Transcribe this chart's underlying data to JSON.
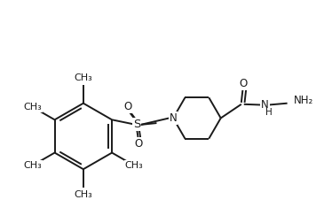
{
  "background_color": "#ffffff",
  "line_color": "#1a1a1a",
  "line_width": 1.4,
  "font_size": 8.5,
  "figsize": [
    3.74,
    2.52
  ],
  "dpi": 100,
  "xlim": [
    0,
    10
  ],
  "ylim": [
    0,
    6.7
  ]
}
